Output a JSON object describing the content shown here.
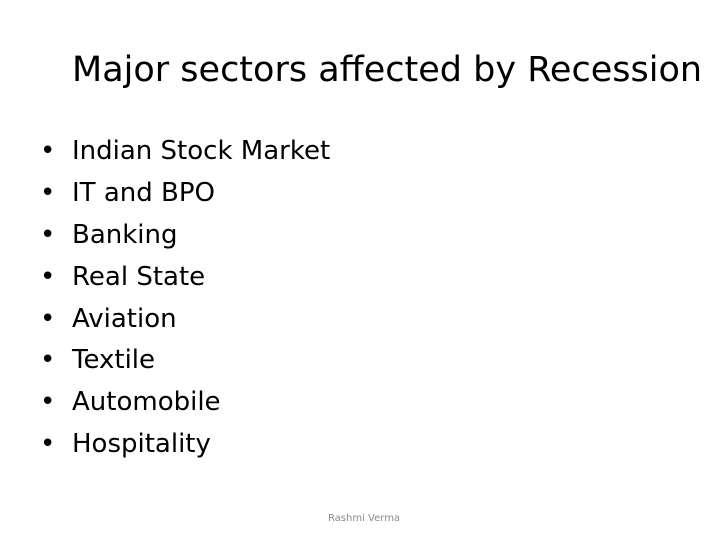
{
  "slide": {
    "title": "Major sectors affected by Recession",
    "bullet_symbol": "•",
    "bullets": [
      "Indian Stock Market",
      "IT and BPO",
      "Banking",
      "Real State",
      "Aviation",
      "Textile",
      "Automobile",
      "Hospitality"
    ],
    "footer": "Rashmi Verma"
  }
}
